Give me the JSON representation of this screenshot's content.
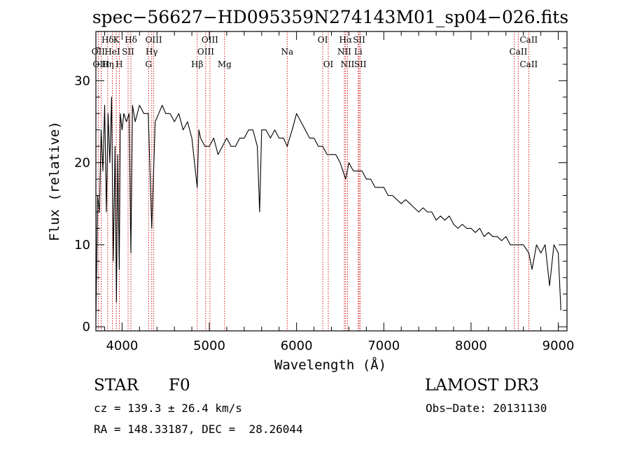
{
  "chart_data": {
    "type": "line",
    "title": "spec−56627−HD095359N274143M01_sp04−026.fits",
    "xlabel": "Wavelength (Å)",
    "ylabel": "Flux (relative)",
    "xlim": [
      3700,
      9100
    ],
    "ylim": [
      -0.5,
      36
    ],
    "x_ticks": [
      4000,
      5000,
      6000,
      7000,
      8000,
      9000
    ],
    "y_ticks": [
      0,
      10,
      20,
      30
    ],
    "grid": false,
    "line_color": "#000000",
    "marker_color": "#cc0000",
    "series": [
      {
        "name": "flux",
        "x": [
          3700,
          3710,
          3720,
          3740,
          3760,
          3780,
          3800,
          3820,
          3840,
          3860,
          3880,
          3900,
          3920,
          3935,
          3950,
          3968,
          3980,
          4000,
          4020,
          4050,
          4080,
          4101,
          4120,
          4150,
          4200,
          4250,
          4300,
          4340,
          4380,
          4420,
          4460,
          4500,
          4550,
          4600,
          4650,
          4700,
          4750,
          4800,
          4861,
          4880,
          4900,
          4950,
          5000,
          5050,
          5100,
          5150,
          5200,
          5250,
          5300,
          5350,
          5400,
          5450,
          5500,
          5550,
          5577,
          5600,
          5650,
          5700,
          5750,
          5800,
          5850,
          5893,
          5920,
          5950,
          6000,
          6050,
          6100,
          6150,
          6200,
          6250,
          6300,
          6350,
          6400,
          6450,
          6500,
          6563,
          6600,
          6650,
          6700,
          6750,
          6800,
          6850,
          6900,
          6950,
          7000,
          7050,
          7100,
          7150,
          7200,
          7250,
          7300,
          7350,
          7400,
          7450,
          7500,
          7550,
          7600,
          7650,
          7700,
          7750,
          7800,
          7850,
          7900,
          7950,
          8000,
          8050,
          8100,
          8150,
          8200,
          8250,
          8300,
          8350,
          8400,
          8450,
          8500,
          8542,
          8600,
          8662,
          8700,
          8750,
          8800,
          8850,
          8900,
          8950,
          9000,
          9030
        ],
        "y": [
          1,
          8,
          16,
          14,
          24,
          19,
          27,
          14,
          26,
          20,
          28,
          8,
          22,
          3,
          21,
          7,
          26,
          24,
          26,
          25,
          26,
          9,
          27,
          25,
          27,
          26,
          26,
          12,
          25,
          26,
          27,
          26,
          26,
          25,
          26,
          24,
          25,
          23,
          17,
          24,
          23,
          22,
          22,
          23,
          21,
          22,
          23,
          22,
          22,
          23,
          23,
          24,
          24,
          22,
          14,
          24,
          24,
          23,
          24,
          23,
          23,
          22,
          23,
          24,
          26,
          25,
          24,
          23,
          23,
          22,
          22,
          21,
          21,
          21,
          20,
          18,
          20,
          19,
          19,
          19,
          18,
          18,
          17,
          17,
          17,
          16,
          16,
          15.5,
          15,
          15.5,
          15,
          14.5,
          14,
          14.5,
          14,
          14,
          13,
          13.5,
          13,
          13.5,
          12.5,
          12,
          12.5,
          12,
          12,
          11.5,
          12,
          11,
          11.5,
          11,
          11,
          10.5,
          11,
          10,
          10,
          10,
          10,
          9,
          7,
          10,
          9,
          10,
          5,
          10,
          9,
          2
        ]
      }
    ],
    "spectral_lines": [
      {
        "label": "Hδ",
        "wl": 3835,
        "row": 0
      },
      {
        "label": "K",
        "wl": 3934,
        "row": 0
      },
      {
        "label": "Hδ",
        "wl": 4101,
        "row": 0
      },
      {
        "label": "OIII",
        "wl": 4363,
        "row": 0
      },
      {
        "label": "OIII",
        "wl": 5007,
        "row": 0
      },
      {
        "label": "OI",
        "wl": 6300,
        "row": 0
      },
      {
        "label": "Hα",
        "wl": 6563,
        "row": 0
      },
      {
        "label": "SII",
        "wl": 6717,
        "row": 0
      },
      {
        "label": "CaII",
        "wl": 8662,
        "row": 0
      },
      {
        "label": "OII",
        "wl": 3727,
        "row": 1
      },
      {
        "label": "HeI",
        "wl": 3889,
        "row": 1
      },
      {
        "label": "SII",
        "wl": 4069,
        "row": 1
      },
      {
        "label": "Hγ",
        "wl": 4340,
        "row": 1
      },
      {
        "label": "OIII",
        "wl": 4959,
        "row": 1
      },
      {
        "label": "Na",
        "wl": 5893,
        "row": 1
      },
      {
        "label": "NII",
        "wl": 6548,
        "row": 1
      },
      {
        "label": "Li",
        "wl": 6707,
        "row": 1
      },
      {
        "label": "CaII",
        "wl": 8542,
        "row": 1
      },
      {
        "label": "OIII",
        "wl": 3760,
        "row": 2
      },
      {
        "label": "Hη",
        "wl": 3835,
        "row": 2
      },
      {
        "label": "H",
        "wl": 3968,
        "row": 2
      },
      {
        "label": "G",
        "wl": 4304,
        "row": 2
      },
      {
        "label": "Hβ",
        "wl": 4861,
        "row": 2
      },
      {
        "label": "Mg",
        "wl": 5175,
        "row": 2
      },
      {
        "label": "OI",
        "wl": 6364,
        "row": 2
      },
      {
        "label": "NII",
        "wl": 6584,
        "row": 2
      },
      {
        "label": "SII",
        "wl": 6731,
        "row": 2
      },
      {
        "label": "CaII",
        "wl": 8662,
        "row": 2
      }
    ],
    "marker_wavelengths": [
      3727,
      3760,
      3835,
      3889,
      3934,
      3968,
      4069,
      4101,
      4304,
      4340,
      4363,
      4861,
      4959,
      5007,
      5175,
      5893,
      6300,
      6364,
      6548,
      6563,
      6584,
      6707,
      6717,
      6731,
      8498,
      8542,
      8662
    ]
  },
  "info": {
    "object_class": "STAR",
    "subclass": "F0",
    "survey": "LAMOST DR3",
    "cz": "cz = 139.3 ± 26.4 km/s",
    "obs_date": "Obs−Date: 20131130",
    "coords": "RA = 148.33187, DEC =  28.26044"
  }
}
